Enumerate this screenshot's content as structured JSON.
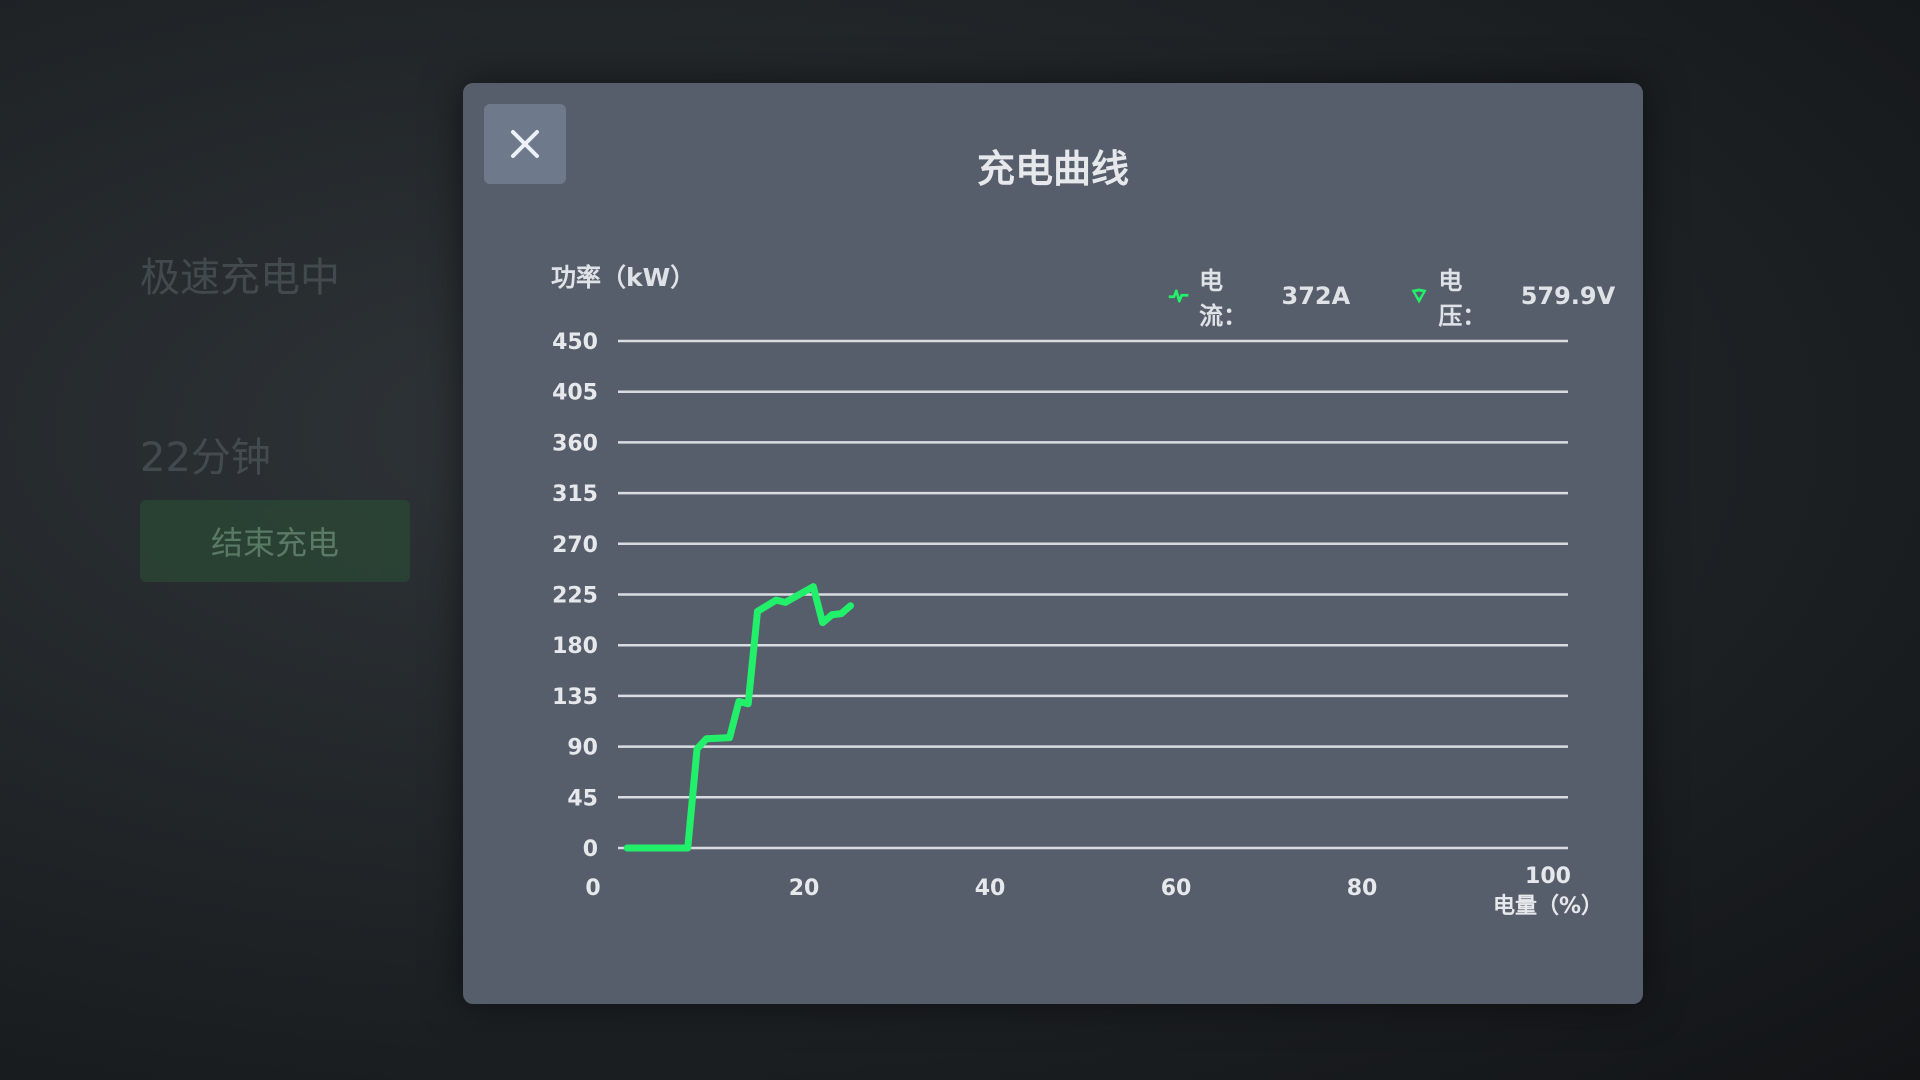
{
  "background": {
    "status": "极速充电中",
    "remaining_time": "22分钟",
    "end_button": "结束充电"
  },
  "dialog": {
    "title": "充电曲线",
    "close_icon": "close-x-icon",
    "legend": {
      "current_label": "电流：",
      "current_value": "372A",
      "current_icon": "pulse-icon",
      "voltage_label": "电压：",
      "voltage_value": "579.9V",
      "voltage_icon": "shield-icon"
    }
  },
  "chart_data": {
    "type": "line",
    "title": "充电曲线",
    "ylabel": "功率（kW）",
    "xlabel": "电量（%）",
    "xlim": [
      0,
      100
    ],
    "ylim": [
      0,
      450
    ],
    "xticks": [
      0,
      20,
      40,
      60,
      80,
      100
    ],
    "yticks": [
      0,
      45,
      90,
      135,
      180,
      225,
      270,
      315,
      360,
      405,
      450
    ],
    "grid": true,
    "line_color": "#22f06a",
    "x": [
      1,
      7.5,
      8.5,
      9.5,
      12,
      13,
      14,
      15,
      17,
      18,
      21,
      22,
      23,
      24,
      25
    ],
    "y": [
      0,
      0,
      88,
      97,
      98,
      130,
      128,
      210,
      220,
      218,
      232,
      200,
      207,
      208,
      215
    ]
  }
}
